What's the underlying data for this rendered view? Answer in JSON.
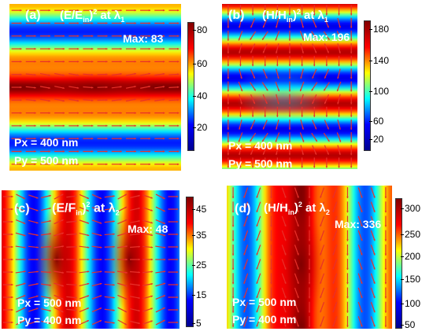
{
  "panels": [
    {
      "id": "a",
      "label": "(a)",
      "title_base": "(E/E",
      "title_sub": "in",
      "title_tail": ")",
      "title_sup": "2",
      "title_at": " at λ",
      "title_lambda_sub": "1",
      "max": "Max: 83",
      "px": "Px = 400 nm",
      "py": "Py = 500 nm",
      "ticks": [
        "80",
        "60",
        "40",
        "20"
      ]
    },
    {
      "id": "b",
      "label": "(b)",
      "title_base": "(H/H",
      "title_sub": "in",
      "title_tail": ")",
      "title_sup": "2",
      "title_at": " at λ",
      "title_lambda_sub": "1",
      "max": "Max: 196",
      "px": "Px = 400 nm",
      "py": "Py = 500 nm",
      "ticks": [
        "180",
        "140",
        "100",
        "60",
        "20"
      ]
    },
    {
      "id": "c",
      "label": "(c)",
      "title_base": "(E/F",
      "title_sub": "in",
      "title_tail": ")",
      "title_sup": "2",
      "title_at": " at λ",
      "title_lambda_sub": "2",
      "max": "Max: 48",
      "px": "Px = 500 nm",
      "py": "Py = 400 nm",
      "ticks": [
        "45",
        "35",
        "25",
        "15",
        "5"
      ]
    },
    {
      "id": "d",
      "label": "(d)",
      "title_base": "(H/H",
      "title_sub": "in",
      "title_tail": ")",
      "title_sup": "2",
      "title_at": " at λ",
      "title_lambda_sub": "2",
      "max": "Max: 336",
      "px": "Px = 500 nm",
      "py": "Py = 400 nm",
      "ticks": [
        "300",
        "250",
        "200",
        "150",
        "100",
        "50"
      ]
    }
  ],
  "colors": {
    "jet_low": "#00008f",
    "jet_high": "#800000",
    "arrow": "#e8302a"
  }
}
